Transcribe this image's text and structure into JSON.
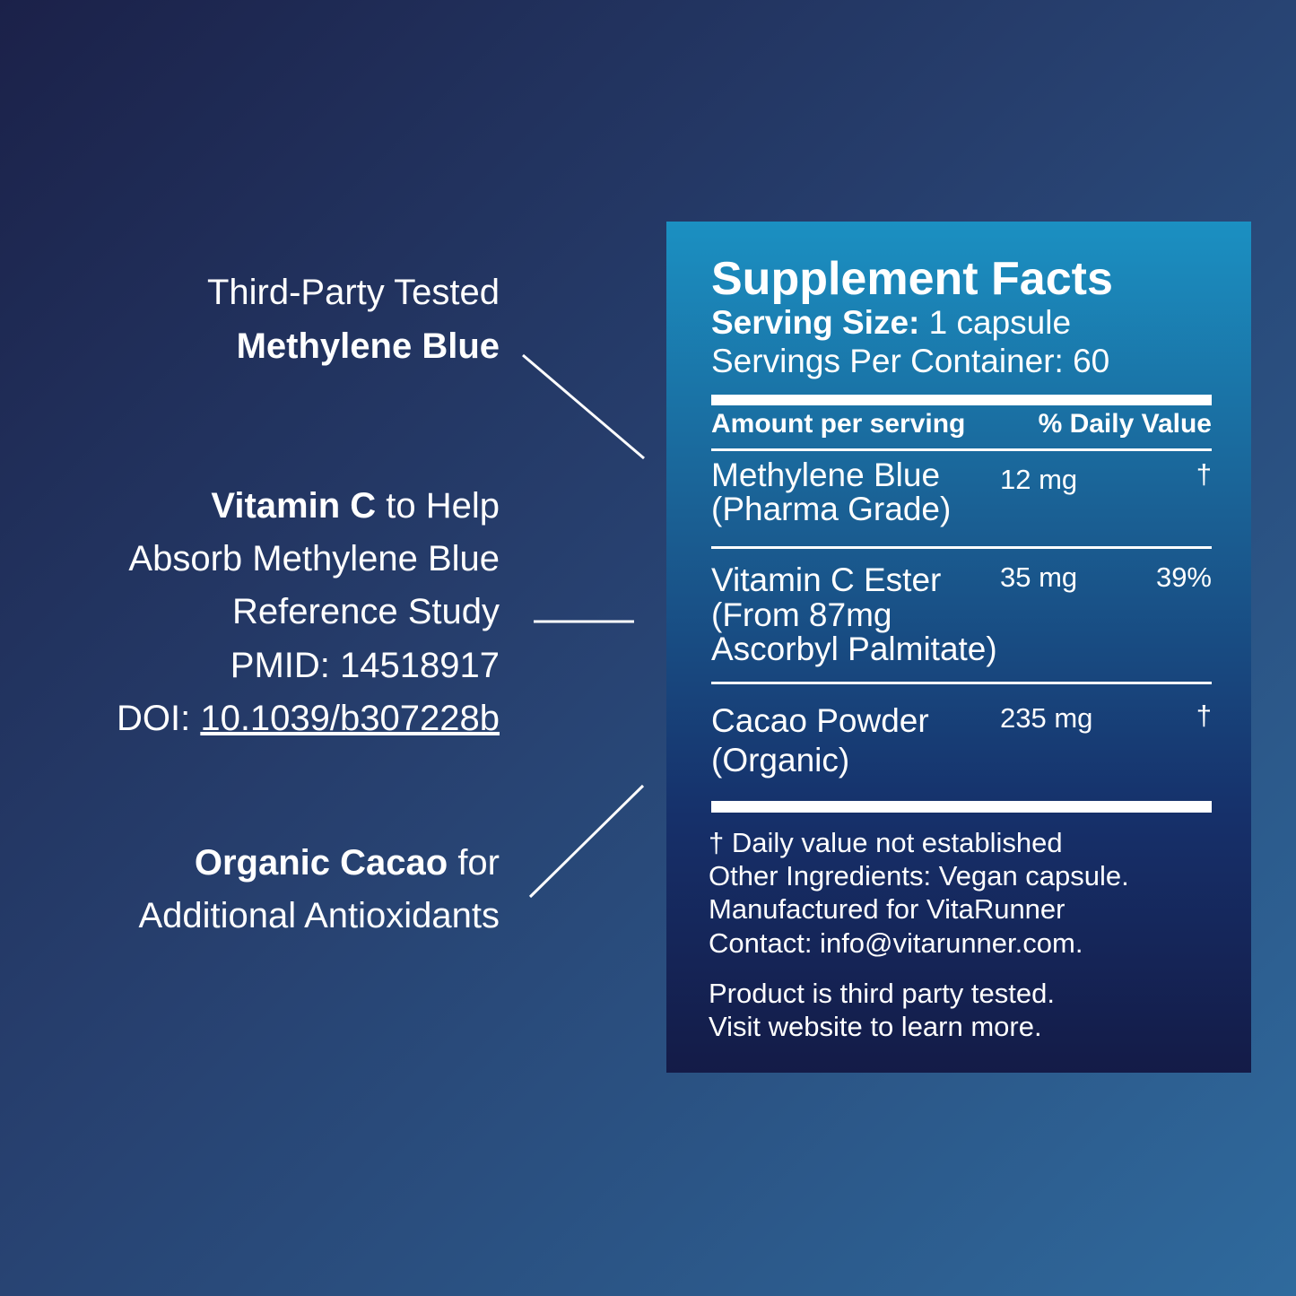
{
  "callouts": [
    {
      "lines": [
        "Third-Party Tested"
      ],
      "bold": "Methylene Blue"
    },
    {
      "bold": "Vitamin C",
      "rest": " to Help",
      "lines": [
        "Absorb Methylene Blue",
        "Reference Study",
        "PMID: 14518917"
      ],
      "doi_label": "DOI: ",
      "doi": "10.1039/b307228b"
    },
    {
      "bold": "Organic Cacao",
      "rest": " for",
      "lines": [
        "Additional Antioxidants"
      ]
    }
  ],
  "facts": {
    "title": "Supplement Facts",
    "serving_size_label": "Serving Size:",
    "serving_size": "1 capsule",
    "servings": "Servings Per Container: 60",
    "col_amount": "Amount per serving",
    "col_dv": "% Daily Value",
    "rows": [
      {
        "name": [
          "Methylene Blue",
          "(Pharma Grade)"
        ],
        "amount": "12 mg",
        "dv": "†"
      },
      {
        "name": [
          "Vitamin C Ester",
          "(From 87mg",
          "Ascorbyl Palmitate)"
        ],
        "amount": "35 mg",
        "dv": "39%"
      },
      {
        "name": [
          "Cacao Powder",
          "(Organic)"
        ],
        "amount": "235 mg",
        "dv": "†"
      }
    ],
    "footnotes": [
      "† Daily value not established",
      "Other Ingredients: Vegan capsule.",
      "Manufactured for VitaRunner",
      "Contact: info@vitarunner.com."
    ],
    "note": [
      "Product is third party tested.",
      "Visit website to learn more."
    ]
  }
}
